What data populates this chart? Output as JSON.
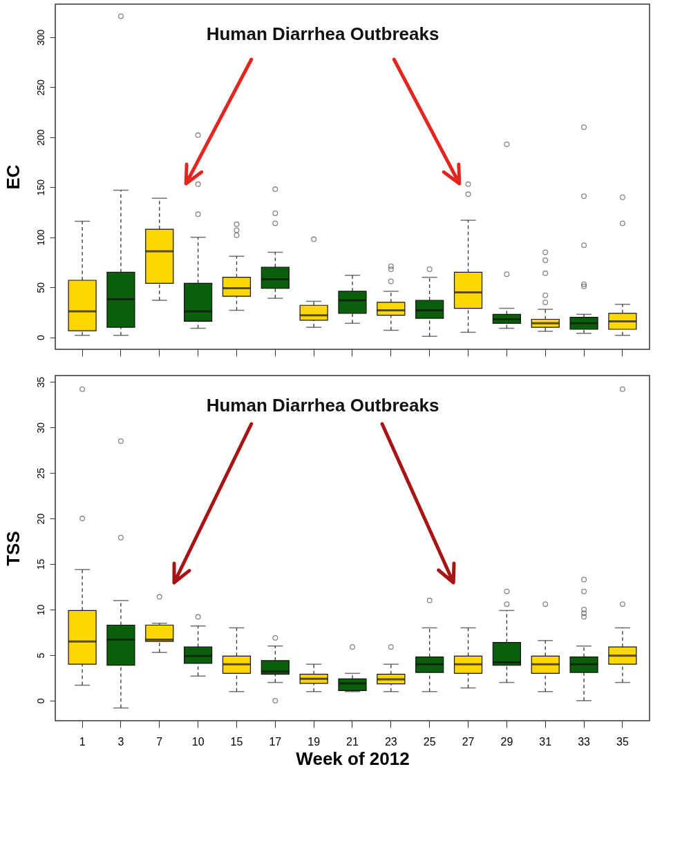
{
  "chart_data": [
    {
      "type": "box",
      "ylabel": "EC",
      "tick_labels": "y",
      "annotations": [
        "Human Diarrhea Outbreaks"
      ],
      "categories": [
        "1",
        "3",
        "7",
        "10",
        "15",
        "17",
        "19",
        "21",
        "23",
        "25",
        "27",
        "29",
        "31",
        "33",
        "35"
      ],
      "colors": [
        "#ffd700",
        "#0b5e0b",
        "#ffd700",
        "#0b5e0b",
        "#ffd700",
        "#0b5e0b",
        "#ffd700",
        "#0b5e0b",
        "#ffd700",
        "#0b5e0b",
        "#ffd700",
        "#0b5e0b",
        "#ffd700",
        "#0b5e0b",
        "#ffd700"
      ],
      "ylim": [
        -12,
        333
      ],
      "yticks": [
        0,
        50,
        100,
        150,
        200,
        250,
        300
      ],
      "boxes": [
        {
          "low": 2,
          "q1": 6.5,
          "median": 26,
          "q3": 57,
          "high": 116
        },
        {
          "low": 2,
          "q1": 10,
          "median": 38,
          "q3": 65,
          "high": 147,
          "outliers": [
            321
          ]
        },
        {
          "low": 37,
          "q1": 54,
          "median": 86,
          "q3": 108,
          "high": 139
        },
        {
          "low": 9,
          "q1": 16,
          "median": 26,
          "q3": 54,
          "high": 100,
          "outliers": [
            202,
            153,
            123
          ]
        },
        {
          "low": 27,
          "q1": 41,
          "median": 49,
          "q3": 60,
          "high": 81,
          "outliers": [
            113,
            107,
            102
          ]
        },
        {
          "low": 39,
          "q1": 49,
          "median": 58,
          "q3": 70,
          "high": 85,
          "outliers": [
            148,
            124,
            114
          ]
        },
        {
          "low": 10,
          "q1": 17,
          "median": 22,
          "q3": 32,
          "high": 36,
          "outliers": [
            98
          ]
        },
        {
          "low": 14,
          "q1": 24,
          "median": 37,
          "q3": 46,
          "high": 62
        },
        {
          "low": 7,
          "q1": 22,
          "median": 27,
          "q3": 35,
          "high": 46,
          "outliers": [
            71,
            68,
            56
          ]
        },
        {
          "low": 1,
          "q1": 19,
          "median": 27,
          "q3": 37,
          "high": 60,
          "outliers": [
            68
          ]
        },
        {
          "low": 5,
          "q1": 29,
          "median": 45,
          "q3": 65,
          "high": 117,
          "outliers": [
            153,
            143
          ]
        },
        {
          "low": 9,
          "q1": 14,
          "median": 18,
          "q3": 23,
          "high": 29,
          "outliers": [
            193,
            63
          ]
        },
        {
          "low": 6,
          "q1": 10,
          "median": 14,
          "q3": 18,
          "high": 28,
          "outliers": [
            85,
            77,
            64,
            42,
            35
          ]
        },
        {
          "low": 4,
          "q1": 8,
          "median": 14,
          "q3": 20,
          "high": 23,
          "outliers": [
            210,
            141,
            92,
            53,
            51
          ]
        },
        {
          "low": 2,
          "q1": 8,
          "median": 16,
          "q3": 24,
          "high": 33,
          "outliers": [
            140,
            114
          ]
        }
      ]
    },
    {
      "type": "box",
      "ylabel": "TSS",
      "xlabel": "Week of 2012",
      "annotations": [
        "Human Diarrhea Outbreaks"
      ],
      "categories": [
        "1",
        "3",
        "7",
        "10",
        "15",
        "17",
        "19",
        "21",
        "23",
        "25",
        "27",
        "29",
        "31",
        "33",
        "35"
      ],
      "colors": [
        "#ffd700",
        "#0b5e0b",
        "#ffd700",
        "#0b5e0b",
        "#ffd700",
        "#0b5e0b",
        "#ffd700",
        "#0b5e0b",
        "#ffd700",
        "#0b5e0b",
        "#ffd700",
        "#0b5e0b",
        "#ffd700",
        "#0b5e0b",
        "#ffd700"
      ],
      "ylim": [
        -2.2,
        35.7
      ],
      "yticks": [
        0,
        5,
        10,
        15,
        20,
        25,
        30,
        35
      ],
      "boxes": [
        {
          "low": 1.7,
          "q1": 4.0,
          "median": 6.5,
          "q3": 9.9,
          "high": 14.4,
          "outliers": [
            34.2,
            20
          ]
        },
        {
          "low": -0.8,
          "q1": 3.9,
          "median": 6.7,
          "q3": 8.3,
          "high": 11,
          "outliers": [
            28.5,
            17.9
          ]
        },
        {
          "low": 5.3,
          "q1": 6.5,
          "median": 6.7,
          "q3": 8.3,
          "high": 8.5,
          "outliers": [
            11.4
          ]
        },
        {
          "low": 2.7,
          "q1": 4.1,
          "median": 4.9,
          "q3": 5.9,
          "high": 8.2,
          "outliers": [
            9.2
          ]
        },
        {
          "low": 1,
          "q1": 3,
          "median": 4,
          "q3": 4.9,
          "high": 8
        },
        {
          "low": 2,
          "q1": 2.9,
          "median": 3.2,
          "q3": 4.4,
          "high": 6,
          "outliers": [
            6.9,
            0
          ]
        },
        {
          "low": 1,
          "q1": 1.9,
          "median": 2.4,
          "q3": 2.9,
          "high": 4
        },
        {
          "low": 1,
          "q1": 1.1,
          "median": 1.9,
          "q3": 2.4,
          "high": 3,
          "outliers": [
            5.9
          ]
        },
        {
          "low": 1,
          "q1": 1.85,
          "median": 2.35,
          "q3": 2.9,
          "high": 4,
          "outliers": [
            5.9
          ]
        },
        {
          "low": 1,
          "q1": 3.1,
          "median": 4,
          "q3": 4.8,
          "high": 8,
          "outliers": [
            11
          ]
        },
        {
          "low": 1.4,
          "q1": 3,
          "median": 4,
          "q3": 4.9,
          "high": 8
        },
        {
          "low": 2,
          "q1": 3.9,
          "median": 4.2,
          "q3": 6.4,
          "high": 9.9,
          "outliers": [
            12,
            10.6
          ]
        },
        {
          "low": 1,
          "q1": 3,
          "median": 4,
          "q3": 4.9,
          "high": 6.6,
          "outliers": [
            10.6
          ]
        },
        {
          "low": 0,
          "q1": 3.1,
          "median": 4,
          "q3": 4.8,
          "high": 6,
          "outliers": [
            13.3,
            12,
            10,
            9.6,
            9.2
          ]
        },
        {
          "low": 2,
          "q1": 4,
          "median": 4.95,
          "q3": 5.9,
          "high": 8,
          "outliers": [
            34.2,
            10.6
          ]
        }
      ]
    }
  ]
}
